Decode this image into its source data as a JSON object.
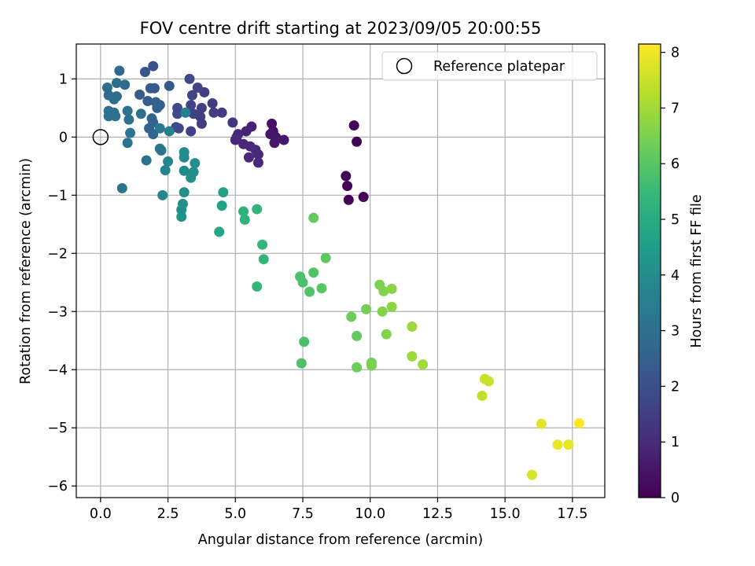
{
  "chart_data": {
    "type": "scatter",
    "title": "FOV centre drift starting at 2023/09/05 20:00:55",
    "xlabel": "Angular distance from reference (arcmin)",
    "ylabel": "Rotation from reference (arcmin)",
    "xlim": [
      -0.9,
      18.7
    ],
    "ylim": [
      -6.2,
      1.6
    ],
    "xticks": [
      0.0,
      2.5,
      5.0,
      7.5,
      10.0,
      12.5,
      15.0,
      17.5
    ],
    "xtick_labels": [
      "0.0",
      "2.5",
      "5.0",
      "7.5",
      "10.0",
      "12.5",
      "15.0",
      "17.5"
    ],
    "yticks": [
      1,
      0,
      -1,
      -2,
      -3,
      -4,
      -5,
      -6
    ],
    "ytick_labels": [
      "1",
      "0",
      "−1",
      "−2",
      "−3",
      "−4",
      "−5",
      "−6"
    ],
    "grid": true,
    "legend": {
      "position": "upper right",
      "entries": [
        {
          "label": "Reference platepar",
          "marker": "open-circle"
        }
      ]
    },
    "colormap": "viridis",
    "colorbar": {
      "label": "Hours from first FF file",
      "range": [
        0,
        8.15
      ],
      "ticks": [
        0,
        1,
        2,
        3,
        4,
        5,
        6,
        7,
        8
      ],
      "tick_labels": [
        "0",
        "1",
        "2",
        "3",
        "4",
        "5",
        "6",
        "7",
        "8"
      ]
    },
    "reference_point": {
      "x": 0,
      "y": 0
    },
    "series": [
      {
        "columns": [
          "x",
          "y",
          "hours"
        ],
        "points": [
          [
            9.4,
            0.2,
            0.1
          ],
          [
            9.5,
            -0.08,
            0.1
          ],
          [
            9.1,
            -0.67,
            0.05
          ],
          [
            9.15,
            -0.84,
            0.05
          ],
          [
            9.2,
            -1.08,
            0.05
          ],
          [
            9.75,
            -1.03,
            0.05
          ],
          [
            6.35,
            0.23,
            0.4
          ],
          [
            6.4,
            0.1,
            0.4
          ],
          [
            6.3,
            0.05,
            0.5
          ],
          [
            6.5,
            0.0,
            0.5
          ],
          [
            6.8,
            -0.05,
            0.5
          ],
          [
            6.45,
            -0.1,
            0.5
          ],
          [
            5.6,
            0.18,
            0.8
          ],
          [
            5.4,
            0.1,
            0.8
          ],
          [
            5.1,
            0.05,
            0.9
          ],
          [
            5.0,
            -0.05,
            0.9
          ],
          [
            5.3,
            -0.12,
            0.9
          ],
          [
            5.55,
            -0.16,
            0.9
          ],
          [
            5.75,
            -0.22,
            0.9
          ],
          [
            5.85,
            -0.3,
            0.9
          ],
          [
            5.5,
            -0.35,
            0.9
          ],
          [
            5.85,
            -0.44,
            0.9
          ],
          [
            5.05,
            0.0,
            0.9
          ],
          [
            4.9,
            0.25,
            1.3
          ],
          [
            4.5,
            0.42,
            1.4
          ],
          [
            4.15,
            0.58,
            1.4
          ],
          [
            3.85,
            0.77,
            1.5
          ],
          [
            4.2,
            0.42,
            1.5
          ],
          [
            3.75,
            0.5,
            1.5
          ],
          [
            3.7,
            0.35,
            1.5
          ],
          [
            3.75,
            0.23,
            1.5
          ],
          [
            3.35,
            0.1,
            1.6
          ],
          [
            3.45,
            0.4,
            1.6
          ],
          [
            3.4,
            0.72,
            1.7
          ],
          [
            3.6,
            0.85,
            1.7
          ],
          [
            3.3,
            1.0,
            1.8
          ],
          [
            2.85,
            0.5,
            1.8
          ],
          [
            2.85,
            0.4,
            1.8
          ],
          [
            2.9,
            0.15,
            1.8
          ],
          [
            2.8,
            0.17,
            1.8
          ],
          [
            3.35,
            0.55,
            1.7
          ],
          [
            1.95,
            1.22,
            2.1
          ],
          [
            1.65,
            1.12,
            2.2
          ],
          [
            2.55,
            0.88,
            2.3
          ],
          [
            1.85,
            0.84,
            2.3
          ],
          [
            2.0,
            0.84,
            2.3
          ],
          [
            1.45,
            0.73,
            2.4
          ],
          [
            1.75,
            0.62,
            2.4
          ],
          [
            2.05,
            0.6,
            2.5
          ],
          [
            2.2,
            0.55,
            2.5
          ],
          [
            2.1,
            0.5,
            2.5
          ],
          [
            1.9,
            0.32,
            2.6
          ],
          [
            1.95,
            0.25,
            2.6
          ],
          [
            1.8,
            0.15,
            2.6
          ],
          [
            1.95,
            0.05,
            2.6
          ],
          [
            0.7,
            1.14,
            2.8
          ],
          [
            0.9,
            0.9,
            2.8
          ],
          [
            0.6,
            0.93,
            2.9
          ],
          [
            0.6,
            0.7,
            2.9
          ],
          [
            0.25,
            0.85,
            2.9
          ],
          [
            0.3,
            0.72,
            2.9
          ],
          [
            0.5,
            0.65,
            2.9
          ],
          [
            1.0,
            0.45,
            3.0
          ],
          [
            0.3,
            0.45,
            3.0
          ],
          [
            0.5,
            0.42,
            3.0
          ],
          [
            1.5,
            0.4,
            3.0
          ],
          [
            0.3,
            0.36,
            3.0
          ],
          [
            0.55,
            0.36,
            3.0
          ],
          [
            1.05,
            0.3,
            3.0
          ],
          [
            1.1,
            0.07,
            3.1
          ],
          [
            1.0,
            -0.1,
            3.1
          ],
          [
            0.8,
            -0.88,
            3.1
          ],
          [
            1.7,
            -0.4,
            3.1
          ],
          [
            2.2,
            -0.2,
            3.2
          ],
          [
            2.25,
            -0.23,
            3.2
          ],
          [
            2.2,
            0.15,
            3.3
          ],
          [
            2.3,
            -1.0,
            3.8
          ],
          [
            2.4,
            -0.57,
            3.7
          ],
          [
            2.5,
            -0.42,
            3.7
          ],
          [
            2.55,
            0.1,
            3.6
          ],
          [
            3.15,
            0.42,
            3.6
          ],
          [
            3.1,
            -0.26,
            3.9
          ],
          [
            3.1,
            -0.35,
            3.9
          ],
          [
            3.1,
            -0.58,
            3.9
          ],
          [
            3.1,
            -0.95,
            4.0
          ],
          [
            3.05,
            -1.15,
            4.0
          ],
          [
            3.0,
            -1.25,
            4.1
          ],
          [
            3.0,
            -1.37,
            4.1
          ],
          [
            3.5,
            -0.45,
            4.0
          ],
          [
            3.45,
            -0.6,
            4.0
          ],
          [
            3.35,
            -0.7,
            4.0
          ],
          [
            4.55,
            -0.95,
            4.7
          ],
          [
            4.5,
            -1.18,
            4.7
          ],
          [
            4.4,
            -1.63,
            4.8
          ],
          [
            5.3,
            -1.28,
            5.2
          ],
          [
            5.35,
            -1.42,
            5.2
          ],
          [
            5.8,
            -1.24,
            5.3
          ],
          [
            6.0,
            -1.85,
            5.4
          ],
          [
            6.05,
            -2.1,
            5.4
          ],
          [
            5.8,
            -2.57,
            5.4
          ],
          [
            7.4,
            -2.4,
            5.8
          ],
          [
            7.5,
            -2.5,
            5.8
          ],
          [
            7.9,
            -2.33,
            5.9
          ],
          [
            7.75,
            -2.66,
            5.9
          ],
          [
            8.2,
            -2.6,
            6.0
          ],
          [
            8.35,
            -2.08,
            6.1
          ],
          [
            7.9,
            -1.39,
            6.2
          ],
          [
            7.55,
            -3.52,
            5.8
          ],
          [
            7.45,
            -3.89,
            5.8
          ],
          [
            9.3,
            -3.09,
            6.3
          ],
          [
            9.5,
            -3.42,
            6.2
          ],
          [
            9.5,
            -3.96,
            6.3
          ],
          [
            9.85,
            -2.96,
            6.4
          ],
          [
            10.05,
            -3.88,
            6.4
          ],
          [
            10.05,
            -3.93,
            6.5
          ],
          [
            10.35,
            -2.54,
            6.5
          ],
          [
            10.5,
            -2.65,
            6.6
          ],
          [
            10.45,
            -3.0,
            6.6
          ],
          [
            10.6,
            -3.39,
            6.6
          ],
          [
            10.8,
            -2.61,
            6.7
          ],
          [
            10.8,
            -2.92,
            6.7
          ],
          [
            11.55,
            -3.26,
            6.9
          ],
          [
            11.55,
            -3.77,
            6.9
          ],
          [
            11.95,
            -3.91,
            7.0
          ],
          [
            14.15,
            -4.45,
            7.4
          ],
          [
            14.25,
            -4.16,
            7.5
          ],
          [
            14.4,
            -4.2,
            7.5
          ],
          [
            16.0,
            -5.81,
            7.7
          ],
          [
            16.35,
            -4.93,
            7.8
          ],
          [
            16.95,
            -5.29,
            7.9
          ],
          [
            17.35,
            -5.29,
            7.9
          ],
          [
            17.75,
            -4.92,
            8.15
          ]
        ]
      }
    ]
  },
  "colors": {
    "viridis_stops": [
      "#440154",
      "#482878",
      "#3e4989",
      "#31688e",
      "#26828e",
      "#1f9e89",
      "#35b779",
      "#6ece58",
      "#b5de2b",
      "#fde725"
    ],
    "grid": "#b0b0b0",
    "axis": "#000000"
  }
}
